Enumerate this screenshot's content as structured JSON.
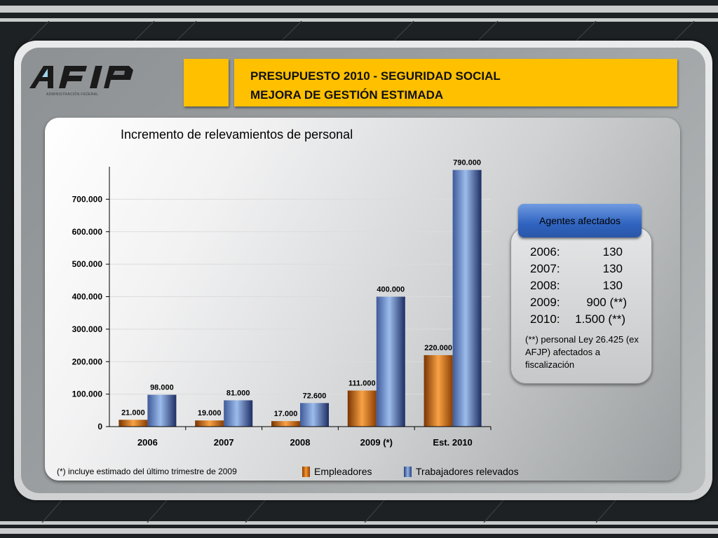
{
  "header": {
    "title_line1": "PRESUPUESTO 2010  - SEGURIDAD SOCIAL",
    "title_line2": "MEJORA DE GESTIÓN ESTIMADA"
  },
  "logo": {
    "text": "AFIP",
    "subtitle": "ADMINISTRACIÓN FEDERAL"
  },
  "chart_data": {
    "type": "bar",
    "title": "Incremento de relevamientos de personal",
    "categories": [
      "2006",
      "2007",
      "2008",
      "2009 (*)",
      "Est. 2010"
    ],
    "series": [
      {
        "name": "Empleadores",
        "values": [
          21000,
          19000,
          17000,
          111000,
          220000
        ],
        "labels": [
          "21.000",
          "19.000",
          "17.000",
          "111.000",
          "220.000"
        ],
        "color": "#f28a1e"
      },
      {
        "name": "Trabajadores relevados",
        "values": [
          98000,
          81000,
          72600,
          400000,
          790000
        ],
        "labels": [
          "98.000",
          "81.000",
          "72.600",
          "400.000",
          "790.000"
        ],
        "color": "#5b86cf"
      }
    ],
    "ylim": [
      0,
      800000
    ],
    "ytick_values": [
      0,
      100000,
      200000,
      300000,
      400000,
      500000,
      600000,
      700000
    ],
    "yticks": [
      "0",
      "100.000",
      "200.000",
      "300.000",
      "400.000",
      "500.000",
      "600.000",
      "700.000"
    ],
    "grid": true,
    "legend_position": "bottom"
  },
  "footnote": "(*) incluye estimado del último trimestre de 2009",
  "agents": {
    "button_label": "Agentes afectados",
    "rows": [
      {
        "year": "2006:",
        "value": "130"
      },
      {
        "year": "2007:",
        "value": "130"
      },
      {
        "year": "2008:",
        "value": "130"
      },
      {
        "year": "2009:",
        "value": "900 (**)"
      },
      {
        "year": "2010:",
        "value": "1.500 (**)"
      }
    ],
    "note": "(**) personal Ley 26.425 (ex AFJP) afectados a fiscalización"
  },
  "colors": {
    "accent_yellow": "#ffc000",
    "button_blue": "#2f63c0",
    "background": "#1d2123"
  }
}
